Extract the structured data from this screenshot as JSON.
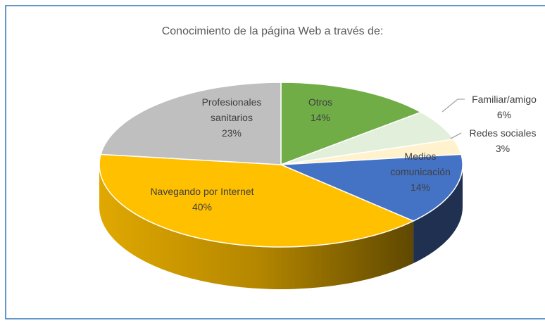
{
  "chart_data": {
    "type": "pie3d",
    "title": "Conocimiento de la página Web a través de:",
    "categories": [
      "Otros",
      "Familiar/amigo",
      "Redes sociales",
      "Medios comunicación",
      "Navegando por Internet",
      "Profesionales sanitarios"
    ],
    "values": [
      14,
      6,
      3,
      14,
      40,
      23
    ],
    "value_labels": [
      "14%",
      "6%",
      "3%",
      "14%",
      "40%",
      "23%"
    ],
    "colors": [
      "#70ad47",
      "#e2efda",
      "#fff2cc",
      "#4472c4",
      "#ffc000",
      "#bfbfbf"
    ]
  }
}
